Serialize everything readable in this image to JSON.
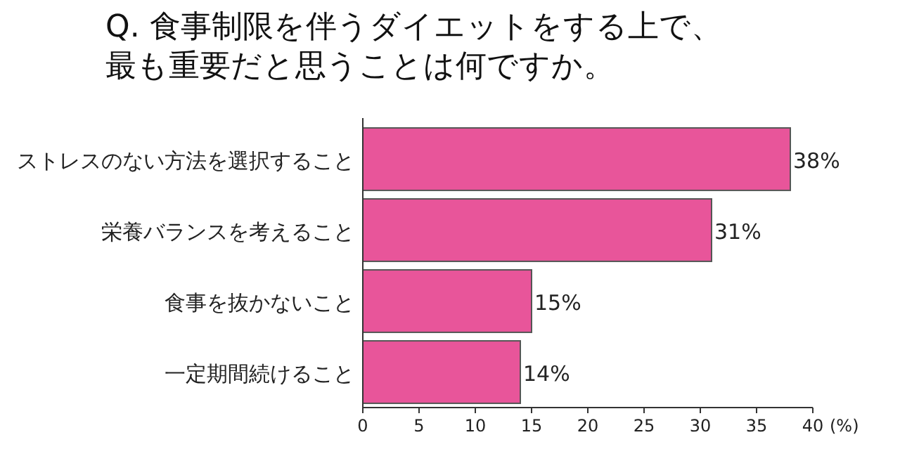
{
  "chart_data": {
    "type": "bar",
    "orientation": "horizontal",
    "title": "Q. 食事制限を伴うダイエットをする上で、最も重要だと思うことは何ですか。",
    "xlabel": "(%)",
    "categories": [
      "ストレスのない方法を選択すること",
      "栄養バランスを考えること",
      "食事を抜かないこと",
      "一定期間続けること"
    ],
    "values": [
      38,
      31,
      15,
      14
    ],
    "value_labels": [
      "38%",
      "31%",
      "15%",
      "14%"
    ],
    "color": "#e8559a",
    "xlim": [
      0,
      40
    ],
    "xticks": [
      0,
      5,
      10,
      15,
      20,
      25,
      30,
      35,
      40
    ],
    "grid": false
  }
}
